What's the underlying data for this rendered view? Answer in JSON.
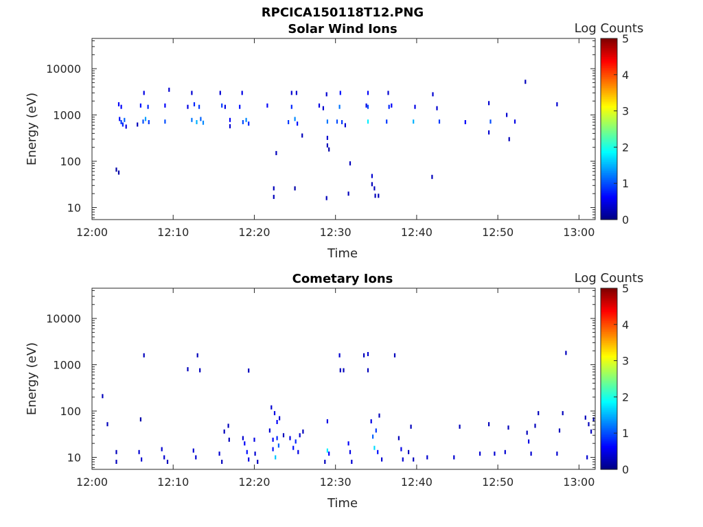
{
  "figure_title": "RPCICA150118T12.PNG",
  "colorscale": [
    "#00007f",
    "#0000ff",
    "#007fff",
    "#00ffff",
    "#7fff7f",
    "#ffff00",
    "#ff7f00",
    "#ff0000",
    "#7f0000"
  ],
  "chart_data": [
    {
      "type": "heatmap",
      "title": "Solar Wind Ions",
      "xlabel": "Time",
      "ylabel": "Energy (eV)",
      "colorbar_label": "Log Counts",
      "colorbar_ticks": [
        "0",
        "1",
        "2",
        "3",
        "4",
        "5"
      ],
      "clim": [
        0,
        5
      ],
      "x_ticks": [
        "12:00",
        "12:10",
        "12:20",
        "12:30",
        "12:40",
        "12:50",
        "13:00"
      ],
      "y_ticks": [
        "10",
        "100",
        "1000",
        "10000"
      ],
      "y_scale": "log",
      "ylim": [
        5.5,
        45000
      ],
      "xlim_minutes": [
        0,
        62
      ],
      "cells": [
        {
          "t": 3.0,
          "e": 66,
          "c": 0.2
        },
        {
          "t": 3.3,
          "e": 57,
          "c": 0.2
        },
        {
          "t": 3.3,
          "e": 1700,
          "c": 0.6
        },
        {
          "t": 3.6,
          "e": 1500,
          "c": 0.6
        },
        {
          "t": 3.4,
          "e": 820,
          "c": 0.7
        },
        {
          "t": 3.6,
          "e": 700,
          "c": 0.9
        },
        {
          "t": 3.8,
          "e": 620,
          "c": 0.8
        },
        {
          "t": 4.0,
          "e": 780,
          "c": 1.1
        },
        {
          "t": 4.2,
          "e": 560,
          "c": 0.5
        },
        {
          "t": 5.6,
          "e": 620,
          "c": 0.3
        },
        {
          "t": 6.0,
          "e": 1600,
          "c": 0.7
        },
        {
          "t": 6.4,
          "e": 3000,
          "c": 0.5
        },
        {
          "t": 6.3,
          "e": 720,
          "c": 1.0
        },
        {
          "t": 6.6,
          "e": 820,
          "c": 1.4
        },
        {
          "t": 6.9,
          "e": 1500,
          "c": 0.8
        },
        {
          "t": 7.0,
          "e": 700,
          "c": 0.9
        },
        {
          "t": 9.0,
          "e": 1600,
          "c": 0.6
        },
        {
          "t": 9.0,
          "e": 720,
          "c": 1.0
        },
        {
          "t": 9.5,
          "e": 3500,
          "c": 0.4
        },
        {
          "t": 11.8,
          "e": 1500,
          "c": 0.5
        },
        {
          "t": 12.3,
          "e": 3000,
          "c": 0.4
        },
        {
          "t": 12.3,
          "e": 780,
          "c": 1.2
        },
        {
          "t": 12.6,
          "e": 1700,
          "c": 0.8
        },
        {
          "t": 12.9,
          "e": 700,
          "c": 1.5
        },
        {
          "t": 13.2,
          "e": 1500,
          "c": 0.9
        },
        {
          "t": 13.4,
          "e": 820,
          "c": 1.1
        },
        {
          "t": 13.7,
          "e": 680,
          "c": 1.3
        },
        {
          "t": 15.8,
          "e": 3000,
          "c": 0.4
        },
        {
          "t": 16.0,
          "e": 1600,
          "c": 0.9
        },
        {
          "t": 16.4,
          "e": 1500,
          "c": 0.5
        },
        {
          "t": 17.0,
          "e": 780,
          "c": 0.6
        },
        {
          "t": 17.0,
          "e": 570,
          "c": 0.4
        },
        {
          "t": 18.2,
          "e": 1500,
          "c": 0.7
        },
        {
          "t": 18.5,
          "e": 3000,
          "c": 0.5
        },
        {
          "t": 18.6,
          "e": 700,
          "c": 1.0
        },
        {
          "t": 19.0,
          "e": 780,
          "c": 1.3
        },
        {
          "t": 19.3,
          "e": 650,
          "c": 0.8
        },
        {
          "t": 21.6,
          "e": 1600,
          "c": 0.6
        },
        {
          "t": 22.4,
          "e": 26,
          "c": 0.3
        },
        {
          "t": 22.4,
          "e": 17,
          "c": 0.3
        },
        {
          "t": 22.7,
          "e": 150,
          "c": 0.3
        },
        {
          "t": 24.2,
          "e": 700,
          "c": 0.9
        },
        {
          "t": 24.6,
          "e": 3000,
          "c": 0.4
        },
        {
          "t": 24.6,
          "e": 1500,
          "c": 0.8
        },
        {
          "t": 25.0,
          "e": 820,
          "c": 1.3
        },
        {
          "t": 25.2,
          "e": 3000,
          "c": 0.4
        },
        {
          "t": 25.3,
          "e": 650,
          "c": 0.7
        },
        {
          "t": 25.0,
          "e": 26,
          "c": 0.2
        },
        {
          "t": 25.9,
          "e": 360,
          "c": 0.3
        },
        {
          "t": 28.0,
          "e": 1600,
          "c": 0.5
        },
        {
          "t": 28.5,
          "e": 1400,
          "c": 0.4
        },
        {
          "t": 28.9,
          "e": 2800,
          "c": 0.4
        },
        {
          "t": 29.0,
          "e": 720,
          "c": 1.2
        },
        {
          "t": 29.0,
          "e": 320,
          "c": 0.4
        },
        {
          "t": 29.0,
          "e": 220,
          "c": 0.3
        },
        {
          "t": 29.2,
          "e": 180,
          "c": 0.2
        },
        {
          "t": 28.9,
          "e": 16,
          "c": 0.3
        },
        {
          "t": 30.2,
          "e": 720,
          "c": 1.0
        },
        {
          "t": 30.5,
          "e": 1500,
          "c": 1.2
        },
        {
          "t": 30.6,
          "e": 3000,
          "c": 0.7
        },
        {
          "t": 30.8,
          "e": 700,
          "c": 0.9
        },
        {
          "t": 31.2,
          "e": 600,
          "c": 0.4
        },
        {
          "t": 31.6,
          "e": 20,
          "c": 0.3
        },
        {
          "t": 31.8,
          "e": 90,
          "c": 0.3
        },
        {
          "t": 33.8,
          "e": 1600,
          "c": 0.5
        },
        {
          "t": 34.0,
          "e": 3000,
          "c": 0.6
        },
        {
          "t": 34.0,
          "e": 1500,
          "c": 1.0
        },
        {
          "t": 34.0,
          "e": 720,
          "c": 1.8
        },
        {
          "t": 34.5,
          "e": 48,
          "c": 0.4
        },
        {
          "t": 34.5,
          "e": 32,
          "c": 0.3
        },
        {
          "t": 34.8,
          "e": 26,
          "c": 0.3
        },
        {
          "t": 34.9,
          "e": 18,
          "c": 0.3
        },
        {
          "t": 35.3,
          "e": 18,
          "c": 0.3
        },
        {
          "t": 36.5,
          "e": 3000,
          "c": 0.4
        },
        {
          "t": 36.3,
          "e": 720,
          "c": 0.9
        },
        {
          "t": 36.6,
          "e": 1500,
          "c": 0.8
        },
        {
          "t": 36.9,
          "e": 1600,
          "c": 0.6
        },
        {
          "t": 39.6,
          "e": 720,
          "c": 1.5
        },
        {
          "t": 39.8,
          "e": 1500,
          "c": 0.5
        },
        {
          "t": 42.0,
          "e": 2800,
          "c": 0.4
        },
        {
          "t": 42.5,
          "e": 1400,
          "c": 0.4
        },
        {
          "t": 42.8,
          "e": 720,
          "c": 0.9
        },
        {
          "t": 41.9,
          "e": 46,
          "c": 0.3
        },
        {
          "t": 46.0,
          "e": 700,
          "c": 0.6
        },
        {
          "t": 48.9,
          "e": 1800,
          "c": 0.4
        },
        {
          "t": 49.1,
          "e": 720,
          "c": 1.0
        },
        {
          "t": 48.9,
          "e": 420,
          "c": 0.4
        },
        {
          "t": 51.1,
          "e": 1000,
          "c": 0.4
        },
        {
          "t": 51.4,
          "e": 300,
          "c": 0.3
        },
        {
          "t": 52.1,
          "e": 720,
          "c": 0.5
        },
        {
          "t": 53.4,
          "e": 5200,
          "c": 0.3
        },
        {
          "t": 57.3,
          "e": 1700,
          "c": 0.4
        }
      ]
    },
    {
      "type": "heatmap",
      "title": "Cometary Ions",
      "xlabel": "Time",
      "ylabel": "Energy (eV)",
      "colorbar_label": "Log Counts",
      "colorbar_ticks": [
        "0",
        "1",
        "2",
        "3",
        "4",
        "5"
      ],
      "clim": [
        0,
        5
      ],
      "x_ticks": [
        "12:00",
        "12:10",
        "12:20",
        "12:30",
        "12:40",
        "12:50",
        "13:00"
      ],
      "y_ticks": [
        "10",
        "100",
        "1000",
        "10000"
      ],
      "y_scale": "log",
      "ylim": [
        5.5,
        45000
      ],
      "xlim_minutes": [
        0,
        62
      ],
      "cells": [
        {
          "t": 1.3,
          "e": 210,
          "c": 0.3
        },
        {
          "t": 1.9,
          "e": 52,
          "c": 0.3
        },
        {
          "t": 6.0,
          "e": 66,
          "c": 0.2
        },
        {
          "t": 3.0,
          "e": 13,
          "c": 0.3
        },
        {
          "t": 3.0,
          "e": 8,
          "c": 0.3
        },
        {
          "t": 5.8,
          "e": 13,
          "c": 0.4
        },
        {
          "t": 6.1,
          "e": 9,
          "c": 0.4
        },
        {
          "t": 6.4,
          "e": 1600,
          "c": 0.3
        },
        {
          "t": 8.6,
          "e": 15,
          "c": 0.4
        },
        {
          "t": 8.9,
          "e": 10,
          "c": 0.4
        },
        {
          "t": 9.3,
          "e": 8,
          "c": 0.3
        },
        {
          "t": 11.8,
          "e": 800,
          "c": 0.3
        },
        {
          "t": 12.5,
          "e": 14,
          "c": 0.4
        },
        {
          "t": 12.8,
          "e": 10,
          "c": 0.4
        },
        {
          "t": 13.0,
          "e": 1600,
          "c": 0.3
        },
        {
          "t": 13.3,
          "e": 760,
          "c": 0.3
        },
        {
          "t": 15.7,
          "e": 12,
          "c": 0.4
        },
        {
          "t": 16.0,
          "e": 8,
          "c": 0.3
        },
        {
          "t": 16.3,
          "e": 36,
          "c": 0.3
        },
        {
          "t": 16.8,
          "e": 48,
          "c": 0.3
        },
        {
          "t": 16.9,
          "e": 24,
          "c": 0.3
        },
        {
          "t": 18.6,
          "e": 26,
          "c": 0.4
        },
        {
          "t": 18.8,
          "e": 20,
          "c": 0.6
        },
        {
          "t": 19.1,
          "e": 13,
          "c": 0.7
        },
        {
          "t": 19.3,
          "e": 9,
          "c": 0.5
        },
        {
          "t": 19.3,
          "e": 750,
          "c": 0.3
        },
        {
          "t": 20.0,
          "e": 24,
          "c": 0.5
        },
        {
          "t": 20.1,
          "e": 12,
          "c": 0.4
        },
        {
          "t": 20.4,
          "e": 8,
          "c": 0.3
        },
        {
          "t": 21.9,
          "e": 38,
          "c": 0.4
        },
        {
          "t": 22.1,
          "e": 120,
          "c": 0.4
        },
        {
          "t": 22.3,
          "e": 24,
          "c": 0.6
        },
        {
          "t": 22.3,
          "e": 15,
          "c": 0.7
        },
        {
          "t": 22.5,
          "e": 90,
          "c": 0.5
        },
        {
          "t": 22.6,
          "e": 10,
          "c": 1.6
        },
        {
          "t": 22.8,
          "e": 58,
          "c": 0.6
        },
        {
          "t": 22.8,
          "e": 26,
          "c": 0.8
        },
        {
          "t": 23.0,
          "e": 18,
          "c": 1.1
        },
        {
          "t": 23.1,
          "e": 70,
          "c": 0.4
        },
        {
          "t": 23.6,
          "e": 30,
          "c": 0.3
        },
        {
          "t": 24.4,
          "e": 26,
          "c": 0.5
        },
        {
          "t": 24.8,
          "e": 16,
          "c": 0.7
        },
        {
          "t": 25.1,
          "e": 22,
          "c": 0.8
        },
        {
          "t": 25.4,
          "e": 13,
          "c": 0.5
        },
        {
          "t": 25.6,
          "e": 30,
          "c": 0.4
        },
        {
          "t": 26.0,
          "e": 36,
          "c": 0.3
        },
        {
          "t": 28.7,
          "e": 8,
          "c": 0.3
        },
        {
          "t": 29.0,
          "e": 60,
          "c": 0.5
        },
        {
          "t": 29.0,
          "e": 14,
          "c": 1.8
        },
        {
          "t": 29.2,
          "e": 12,
          "c": 0.6
        },
        {
          "t": 30.5,
          "e": 1600,
          "c": 0.4
        },
        {
          "t": 30.6,
          "e": 760,
          "c": 0.3
        },
        {
          "t": 31.0,
          "e": 760,
          "c": 0.3
        },
        {
          "t": 31.6,
          "e": 20,
          "c": 0.6
        },
        {
          "t": 31.8,
          "e": 13,
          "c": 0.5
        },
        {
          "t": 32.0,
          "e": 8,
          "c": 0.4
        },
        {
          "t": 33.5,
          "e": 1600,
          "c": 0.3
        },
        {
          "t": 34.0,
          "e": 1700,
          "c": 0.4
        },
        {
          "t": 34.0,
          "e": 760,
          "c": 0.3
        },
        {
          "t": 34.4,
          "e": 60,
          "c": 0.5
        },
        {
          "t": 34.6,
          "e": 28,
          "c": 1.1
        },
        {
          "t": 34.8,
          "e": 16,
          "c": 1.7
        },
        {
          "t": 35.0,
          "e": 38,
          "c": 0.9
        },
        {
          "t": 35.2,
          "e": 13,
          "c": 0.7
        },
        {
          "t": 35.4,
          "e": 80,
          "c": 0.3
        },
        {
          "t": 35.7,
          "e": 9,
          "c": 0.4
        },
        {
          "t": 37.3,
          "e": 1600,
          "c": 0.3
        },
        {
          "t": 37.8,
          "e": 26,
          "c": 0.3
        },
        {
          "t": 38.1,
          "e": 15,
          "c": 0.5
        },
        {
          "t": 38.3,
          "e": 9,
          "c": 0.4
        },
        {
          "t": 39.0,
          "e": 13,
          "c": 0.3
        },
        {
          "t": 39.6,
          "e": 9,
          "c": 0.3
        },
        {
          "t": 39.3,
          "e": 46,
          "c": 0.3
        },
        {
          "t": 41.3,
          "e": 10,
          "c": 0.4
        },
        {
          "t": 44.6,
          "e": 10,
          "c": 0.4
        },
        {
          "t": 45.3,
          "e": 46,
          "c": 0.3
        },
        {
          "t": 47.8,
          "e": 12,
          "c": 0.4
        },
        {
          "t": 48.9,
          "e": 52,
          "c": 0.3
        },
        {
          "t": 49.6,
          "e": 12,
          "c": 0.4
        },
        {
          "t": 50.9,
          "e": 13,
          "c": 0.4
        },
        {
          "t": 51.3,
          "e": 44,
          "c": 0.3
        },
        {
          "t": 53.6,
          "e": 34,
          "c": 0.3
        },
        {
          "t": 53.8,
          "e": 22,
          "c": 0.5
        },
        {
          "t": 54.1,
          "e": 12,
          "c": 0.4
        },
        {
          "t": 54.6,
          "e": 48,
          "c": 0.3
        },
        {
          "t": 55.0,
          "e": 90,
          "c": 0.3
        },
        {
          "t": 57.3,
          "e": 12,
          "c": 0.4
        },
        {
          "t": 57.6,
          "e": 38,
          "c": 0.3
        },
        {
          "t": 58.0,
          "e": 90,
          "c": 0.3
        },
        {
          "t": 58.4,
          "e": 1800,
          "c": 0.3
        },
        {
          "t": 60.8,
          "e": 72,
          "c": 0.3
        },
        {
          "t": 61.2,
          "e": 52,
          "c": 0.3
        },
        {
          "t": 61.5,
          "e": 36,
          "c": 0.3
        },
        {
          "t": 61.8,
          "e": 66,
          "c": 0.3
        },
        {
          "t": 61.0,
          "e": 10,
          "c": 0.4
        }
      ]
    }
  ]
}
